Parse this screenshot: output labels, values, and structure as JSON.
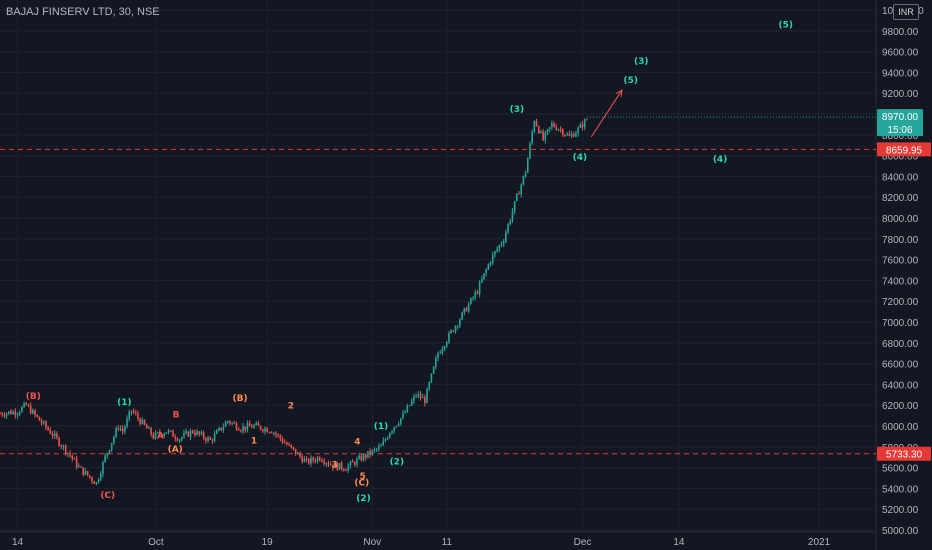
{
  "title": "BAJAJ FINSERV LTD, 30, NSE",
  "currency_badge": "INR",
  "colors": {
    "background": "#131722",
    "grid": "#1e2330",
    "up": "#26a69a",
    "down": "#ef5350",
    "axis_text": "#b2b5be",
    "price_tag": "#26a69a",
    "level_line": "#e53935",
    "wave_green": "#26d7b3",
    "wave_orange": "#ff8a50",
    "wave_red": "#ef5350"
  },
  "chart_data": {
    "type": "line",
    "ylim": [
      5000,
      10000
    ],
    "y_ticks": [
      "5000.00",
      "5200.00",
      "5400.00",
      "5600.00",
      "5800.00",
      "6000.00",
      "6200.00",
      "6400.00",
      "6600.00",
      "6800.00",
      "7000.00",
      "7200.00",
      "7400.00",
      "7600.00",
      "7800.00",
      "8000.00",
      "8200.00",
      "8400.00",
      "8600.00",
      "8800.00",
      "9000.00",
      "9200.00",
      "9400.00",
      "9600.00",
      "9800.00",
      "10000.00"
    ],
    "x_ticks": [
      "14",
      "Oct",
      "19",
      "Nov",
      "11",
      "Dec",
      "14",
      "2021"
    ],
    "x_domain": [
      0,
      100
    ],
    "x_tick_positions": [
      2,
      17.8,
      30.5,
      42.5,
      51,
      66.5,
      77.5,
      93.5
    ],
    "series": [
      {
        "x": [
          0,
          2,
          3,
          4,
          6,
          8,
          9,
          11,
          12,
          13.5,
          14,
          15,
          16.5,
          17.5,
          19,
          20.5,
          22,
          24,
          26,
          27.5,
          29,
          31,
          33,
          35,
          36.5,
          38,
          39.5,
          41,
          42.5,
          43.5,
          44.5,
          46,
          47.5,
          48.5,
          50,
          51.5,
          53,
          54.5,
          56,
          57.5,
          59,
          60,
          61,
          62,
          63,
          64,
          65,
          66,
          67
        ],
        "y": [
          6120,
          6140,
          6200,
          6100,
          5920,
          5720,
          5600,
          5450,
          5700,
          6000,
          5950,
          6150,
          6000,
          5900,
          5950,
          5880,
          5950,
          5860,
          6050,
          5980,
          6000,
          5960,
          5800,
          5650,
          5700,
          5620,
          5600,
          5680,
          5750,
          5800,
          5950,
          6100,
          6300,
          6250,
          6700,
          6900,
          7100,
          7300,
          7600,
          7800,
          8200,
          8450,
          8950,
          8750,
          8900,
          8850,
          8780,
          8850,
          8950
        ]
      }
    ],
    "last_price": "8970.00",
    "countdown": "15:06",
    "levels": [
      {
        "value": 8659.95,
        "label": "8659.95"
      },
      {
        "value": 5733.3,
        "label": "5733.30"
      }
    ],
    "annotations": [
      {
        "text": "(B)",
        "x": 3.8,
        "y": 6260,
        "color": "red"
      },
      {
        "text": "(C)",
        "x": 12.3,
        "y": 5310,
        "color": "red"
      },
      {
        "text": "(1)",
        "x": 14.2,
        "y": 6200,
        "color": "green"
      },
      {
        "text": "B",
        "x": 20.1,
        "y": 6080,
        "color": "red"
      },
      {
        "text": "A",
        "x": 18.3,
        "y": 5880,
        "color": "red"
      },
      {
        "text": "(A)",
        "x": 20,
        "y": 5750,
        "color": "orange"
      },
      {
        "text": "(B)",
        "x": 27.4,
        "y": 6240,
        "color": "orange"
      },
      {
        "text": "1",
        "x": 29,
        "y": 5830,
        "color": "orange"
      },
      {
        "text": "2",
        "x": 33.2,
        "y": 6170,
        "color": "orange"
      },
      {
        "text": "3",
        "x": 38.2,
        "y": 5600,
        "color": "orange"
      },
      {
        "text": "4",
        "x": 40.8,
        "y": 5820,
        "color": "orange"
      },
      {
        "text": "5",
        "x": 41.4,
        "y": 5490,
        "color": "orange"
      },
      {
        "text": "(C)",
        "x": 41.3,
        "y": 5430,
        "color": "orange"
      },
      {
        "text": "(2)",
        "x": 41.5,
        "y": 5280,
        "color": "green"
      },
      {
        "text": "(1)",
        "x": 43.5,
        "y": 5970,
        "color": "green"
      },
      {
        "text": "(2)",
        "x": 45.3,
        "y": 5630,
        "color": "green"
      },
      {
        "text": "(3)",
        "x": 59,
        "y": 9020,
        "color": "green"
      },
      {
        "text": "(4)",
        "x": 66.2,
        "y": 8560,
        "color": "green"
      },
      {
        "text": "(5)",
        "x": 72,
        "y": 9300,
        "color": "green"
      },
      {
        "text": "(3)",
        "x": 73.2,
        "y": 9480,
        "color": "green"
      },
      {
        "text": "(4)",
        "x": 82.2,
        "y": 8540,
        "color": "green"
      },
      {
        "text": "(5)",
        "x": 89.7,
        "y": 9830,
        "color": "green"
      }
    ],
    "arrow": {
      "from": [
        67.5,
        8780
      ],
      "to": [
        71,
        9230
      ]
    }
  }
}
